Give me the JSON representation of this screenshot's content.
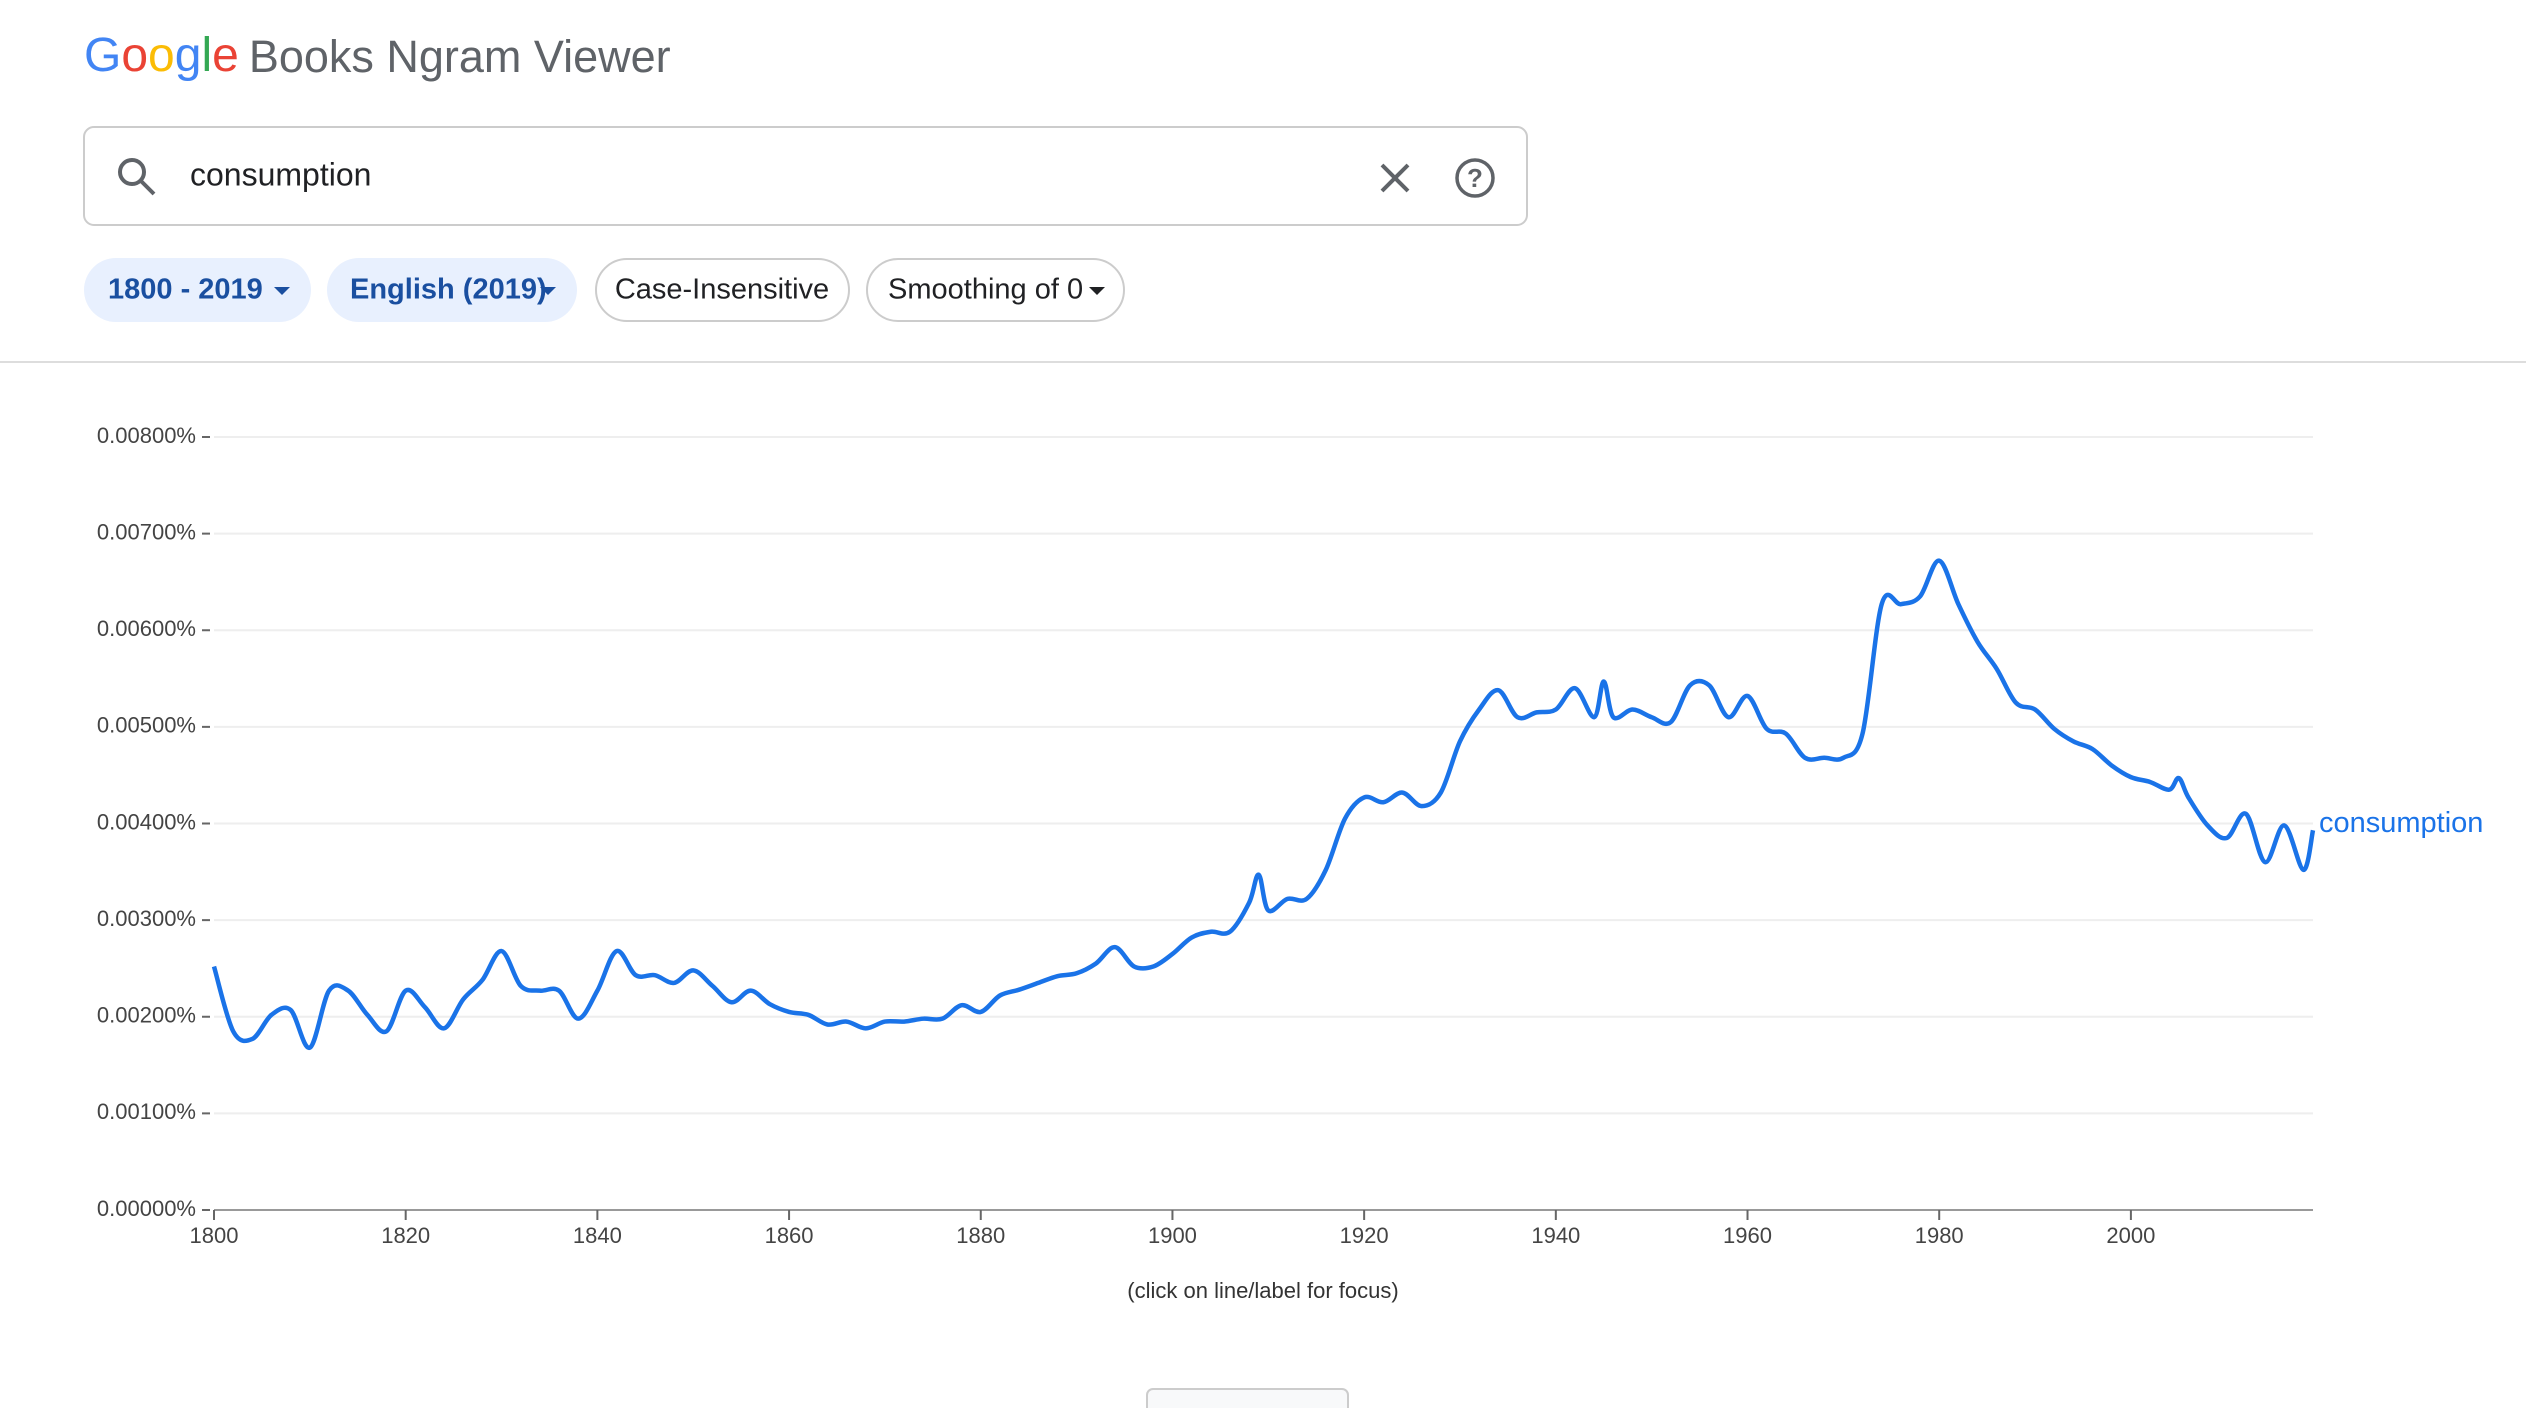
{
  "header": {
    "logo": "Google",
    "title": "Books Ngram Viewer"
  },
  "search": {
    "query": "consumption"
  },
  "filters": [
    "1800 - 2019",
    "English (2019)",
    "Case-Insensitive",
    "Smoothing of 0"
  ],
  "chart_data": {
    "type": "line",
    "x": [
      1800,
      1802,
      1804,
      1806,
      1808,
      1810,
      1812,
      1814,
      1816,
      1818,
      1820,
      1822,
      1824,
      1826,
      1828,
      1830,
      1832,
      1834,
      1836,
      1838,
      1840,
      1842,
      1844,
      1846,
      1848,
      1850,
      1852,
      1854,
      1856,
      1858,
      1860,
      1862,
      1864,
      1866,
      1868,
      1870,
      1872,
      1874,
      1876,
      1878,
      1880,
      1882,
      1884,
      1886,
      1888,
      1890,
      1892,
      1894,
      1896,
      1898,
      1900,
      1902,
      1904,
      1906,
      1908,
      1909,
      1910,
      1912,
      1914,
      1916,
      1918,
      1920,
      1922,
      1924,
      1926,
      1928,
      1930,
      1932,
      1934,
      1936,
      1938,
      1940,
      1942,
      1944,
      1945,
      1946,
      1948,
      1950,
      1952,
      1954,
      1956,
      1958,
      1960,
      1962,
      1964,
      1966,
      1968,
      1970,
      1972,
      1974,
      1976,
      1978,
      1980,
      1982,
      1984,
      1986,
      1988,
      1990,
      1992,
      1994,
      1996,
      1998,
      2000,
      2002,
      2004,
      2005,
      2006,
      2008,
      2010,
      2012,
      2014,
      2016,
      2018,
      2019
    ],
    "series": [
      {
        "name": "consumption",
        "color": "#1a73e8",
        "values": [
          0.00252,
          0.00185,
          0.00177,
          0.00202,
          0.00207,
          0.00168,
          0.00227,
          0.00227,
          0.00202,
          0.00185,
          0.00227,
          0.0021,
          0.00188,
          0.00218,
          0.00238,
          0.00268,
          0.00232,
          0.00227,
          0.00227,
          0.00198,
          0.00227,
          0.00268,
          0.00243,
          0.00243,
          0.00235,
          0.00248,
          0.00232,
          0.00215,
          0.00227,
          0.00213,
          0.00205,
          0.00202,
          0.00192,
          0.00195,
          0.00188,
          0.00195,
          0.00195,
          0.00198,
          0.00198,
          0.00212,
          0.00205,
          0.00222,
          0.00228,
          0.00235,
          0.00242,
          0.00245,
          0.00255,
          0.00272,
          0.00252,
          0.00252,
          0.00265,
          0.00282,
          0.00288,
          0.00288,
          0.00318,
          0.00347,
          0.0031,
          0.00322,
          0.00322,
          0.00352,
          0.00405,
          0.00427,
          0.00422,
          0.00432,
          0.00418,
          0.00432,
          0.00485,
          0.00518,
          0.00538,
          0.0051,
          0.00515,
          0.00518,
          0.0054,
          0.0051,
          0.00547,
          0.0051,
          0.00518,
          0.0051,
          0.00505,
          0.00543,
          0.00543,
          0.0051,
          0.00532,
          0.00498,
          0.00493,
          0.00468,
          0.00468,
          0.00468,
          0.00493,
          0.00627,
          0.00627,
          0.00635,
          0.00672,
          0.00627,
          0.00588,
          0.0056,
          0.00525,
          0.00518,
          0.00498,
          0.00485,
          0.00477,
          0.0046,
          0.00448,
          0.00443,
          0.00435,
          0.00447,
          0.00427,
          0.00398,
          0.00385,
          0.0041,
          0.0036,
          0.00398,
          0.00352,
          0.00393
        ]
      }
    ],
    "xlim": [
      1800,
      2019
    ],
    "xticks": [
      1800,
      1820,
      1840,
      1860,
      1880,
      1900,
      1920,
      1940,
      1960,
      1980,
      2000
    ],
    "ylim": [
      0,
      0.008
    ],
    "yticks": [
      {
        "value": 0,
        "label": "0.00000%"
      },
      {
        "value": 0.001,
        "label": "0.00100%"
      },
      {
        "value": 0.002,
        "label": "0.00200%"
      },
      {
        "value": 0.003,
        "label": "0.00300%"
      },
      {
        "value": 0.004,
        "label": "0.00400%"
      },
      {
        "value": 0.005,
        "label": "0.00500%"
      },
      {
        "value": 0.006,
        "label": "0.00600%"
      },
      {
        "value": 0.007,
        "label": "0.00700%"
      },
      {
        "value": 0.008,
        "label": "0.00800%"
      }
    ],
    "grid": true,
    "note": "(click on line/label for focus)"
  }
}
